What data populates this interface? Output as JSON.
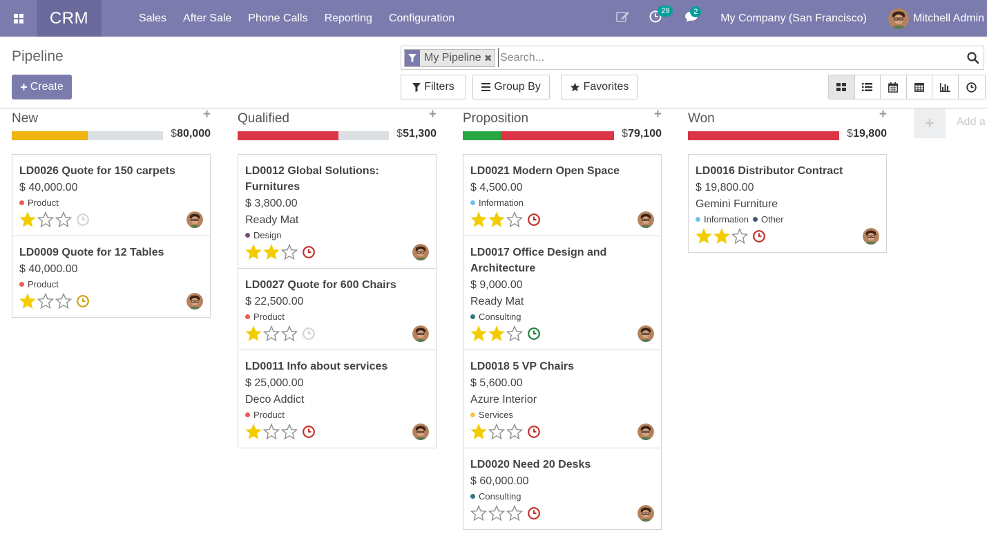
{
  "nav": {
    "brand": "CRM",
    "menu": [
      "Sales",
      "After Sale",
      "Phone Calls",
      "Reporting",
      "Configuration"
    ],
    "activity_count": "29",
    "message_count": "2",
    "company": "My Company (San Francisco)",
    "user": "Mitchell Admin"
  },
  "control": {
    "title": "Pipeline",
    "create_label": "Create",
    "facet": "My Pipeline",
    "search_placeholder": "Search...",
    "filters_label": "Filters",
    "groupby_label": "Group By",
    "favorites_label": "Favorites",
    "views": [
      "kanban",
      "list",
      "calendar",
      "pivot",
      "graph",
      "activity"
    ],
    "active_view": "kanban"
  },
  "colors": {
    "accent": "#7c7bad",
    "planned": "#f0b30f",
    "overdue": "#dc3545",
    "today": "#28a745",
    "star": "#f3cc00",
    "clock_none": "#d4d4d4",
    "clock_overdue": "#c4302b",
    "clock_today": "#21823a",
    "clock_planned": "#d0a214"
  },
  "columns": [
    {
      "title": "New",
      "total_prefix": "$",
      "total": "80,000",
      "progress": [
        {
          "color": "#f0b30f",
          "fraction": 0.5
        }
      ],
      "cards": [
        {
          "title": "LD0026 Quote for 150 carpets",
          "amount": "$ 40,000.00",
          "partner": "",
          "tags": [
            {
              "label": "Product",
              "color": "#ef5b54"
            }
          ],
          "stars": 1,
          "activity": "none"
        },
        {
          "title": "LD0009 Quote for 12 Tables",
          "amount": "$ 40,000.00",
          "partner": "",
          "tags": [
            {
              "label": "Product",
              "color": "#ef5b54"
            }
          ],
          "stars": 1,
          "activity": "planned"
        }
      ]
    },
    {
      "title": "Qualified",
      "total_prefix": "$",
      "total": "51,300",
      "progress": [
        {
          "color": "#dc3545",
          "fraction": 0.667
        }
      ],
      "cards": [
        {
          "title": "LD0012 Global Solutions: Furnitures",
          "amount": "$ 3,800.00",
          "partner": "Ready Mat",
          "tags": [
            {
              "label": "Design",
              "color": "#7b4c6d"
            }
          ],
          "stars": 2,
          "activity": "overdue"
        },
        {
          "title": "LD0027 Quote for 600 Chairs",
          "amount": "$ 22,500.00",
          "partner": "",
          "tags": [
            {
              "label": "Product",
              "color": "#ef5b54"
            }
          ],
          "stars": 1,
          "activity": "none"
        },
        {
          "title": "LD0011 Info about services",
          "amount": "$ 25,000.00",
          "partner": "Deco Addict",
          "tags": [
            {
              "label": "Product",
              "color": "#ef5b54"
            }
          ],
          "stars": 1,
          "activity": "overdue"
        }
      ]
    },
    {
      "title": "Proposition",
      "total_prefix": "$",
      "total": "79,100",
      "progress": [
        {
          "color": "#28a745",
          "fraction": 0.25
        },
        {
          "color": "#dc3545",
          "fraction": 0.75
        }
      ],
      "cards": [
        {
          "title": "LD0021 Modern Open Space",
          "amount": "$ 4,500.00",
          "partner": "",
          "tags": [
            {
              "label": "Information",
              "color": "#6cc1ed"
            }
          ],
          "stars": 2,
          "activity": "overdue"
        },
        {
          "title": "LD0017 Office Design and Architecture",
          "amount": "$ 9,000.00",
          "partner": "Ready Mat",
          "tags": [
            {
              "label": "Consulting",
              "color": "#30797f"
            }
          ],
          "stars": 2,
          "activity": "today"
        },
        {
          "title": "LD0018 5 VP Chairs",
          "amount": "$ 5,600.00",
          "partner": "Azure Interior",
          "tags": [
            {
              "label": "Services",
              "color": "#f6c342"
            }
          ],
          "stars": 1,
          "activity": "overdue"
        },
        {
          "title": "LD0020 Need 20 Desks",
          "amount": "$ 60,000.00",
          "partner": "",
          "tags": [
            {
              "label": "Consulting",
              "color": "#30797f"
            }
          ],
          "stars": 0,
          "activity": "overdue"
        }
      ]
    },
    {
      "title": "Won",
      "total_prefix": "$",
      "total": "19,800",
      "progress": [
        {
          "color": "#dc3545",
          "fraction": 1.0
        }
      ],
      "cards": [
        {
          "title": "LD0016 Distributor Contract",
          "amount": "$ 19,800.00",
          "partner": "Gemini Furniture",
          "tags": [
            {
              "label": "Information",
              "color": "#6cc1ed"
            },
            {
              "label": "Other",
              "color": "#475577"
            }
          ],
          "stars": 2,
          "activity": "overdue"
        }
      ]
    }
  ],
  "add_column_label": "Add a Column"
}
